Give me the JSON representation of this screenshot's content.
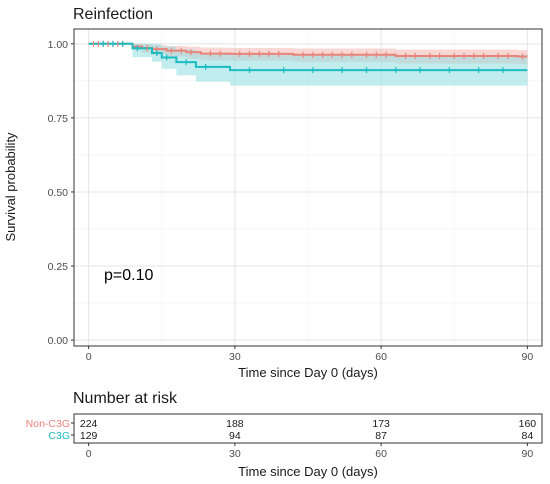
{
  "chart_data": [
    {
      "type": "line",
      "subtype": "kaplan-meier",
      "title": "Reinfection",
      "xlabel": "Time since Day 0 (days)",
      "ylabel": "Survival probability",
      "xlim": [
        -3,
        93
      ],
      "ylim": [
        -0.02,
        1.05
      ],
      "x_ticks": [
        0,
        30,
        60,
        90
      ],
      "y_ticks": [
        0.0,
        0.25,
        0.5,
        0.75,
        1.0
      ],
      "y_tick_labels": [
        "0.00",
        "0.25",
        "0.50",
        "0.75",
        "1.00"
      ],
      "grid": true,
      "annotation": "p=0.10",
      "series": [
        {
          "name": "Non-C3G",
          "color": "#e8837a",
          "band_color": "#f2b7b0",
          "steps": [
            [
              0,
              1.0
            ],
            [
              9,
              0.991
            ],
            [
              11,
              0.986
            ],
            [
              13,
              0.982
            ],
            [
              16,
              0.977
            ],
            [
              20,
              0.972
            ],
            [
              23,
              0.967
            ],
            [
              29,
              0.966
            ],
            [
              40,
              0.966
            ],
            [
              42,
              0.963
            ],
            [
              63,
              0.959
            ],
            [
              88,
              0.957
            ],
            [
              90,
              0.957
            ]
          ],
          "upper": [
            [
              0,
              1.0
            ],
            [
              9,
              1.0
            ],
            [
              11,
              0.998
            ],
            [
              13,
              0.995
            ],
            [
              16,
              0.992
            ],
            [
              20,
              0.99
            ],
            [
              23,
              0.987
            ],
            [
              29,
              0.986
            ],
            [
              42,
              0.984
            ],
            [
              63,
              0.981
            ],
            [
              88,
              0.979
            ],
            [
              90,
              0.979
            ]
          ],
          "lower": [
            [
              0,
              1.0
            ],
            [
              9,
              0.978
            ],
            [
              11,
              0.97
            ],
            [
              13,
              0.963
            ],
            [
              16,
              0.957
            ],
            [
              20,
              0.95
            ],
            [
              23,
              0.944
            ],
            [
              29,
              0.943
            ],
            [
              42,
              0.939
            ],
            [
              63,
              0.933
            ],
            [
              88,
              0.931
            ],
            [
              90,
              0.931
            ]
          ],
          "censor_x": [
            1,
            2,
            3,
            4,
            5,
            6,
            7,
            12,
            14,
            17,
            19,
            21,
            25,
            27,
            31,
            33,
            35,
            37,
            39,
            44,
            46,
            48,
            50,
            52,
            54,
            57,
            59,
            61,
            65,
            67,
            70,
            72,
            75,
            77,
            79,
            81,
            84,
            86,
            89
          ]
        },
        {
          "name": "C3G",
          "color": "#1cbdc1",
          "band_color": "#90dfe1",
          "steps": [
            [
              0,
              1.0
            ],
            [
              9,
              0.985
            ],
            [
              13,
              0.969
            ],
            [
              15,
              0.954
            ],
            [
              18,
              0.938
            ],
            [
              22,
              0.922
            ],
            [
              29,
              0.911
            ],
            [
              90,
              0.911
            ]
          ],
          "upper": [
            [
              0,
              1.0
            ],
            [
              9,
              1.0
            ],
            [
              13,
              1.0
            ],
            [
              15,
              0.99
            ],
            [
              18,
              0.98
            ],
            [
              22,
              0.969
            ],
            [
              29,
              0.962
            ],
            [
              90,
              0.962
            ]
          ],
          "lower": [
            [
              0,
              1.0
            ],
            [
              9,
              0.955
            ],
            [
              13,
              0.94
            ],
            [
              15,
              0.916
            ],
            [
              18,
              0.894
            ],
            [
              22,
              0.872
            ],
            [
              29,
              0.859
            ],
            [
              90,
              0.859
            ]
          ],
          "censor_x": [
            3,
            5,
            7,
            10,
            14,
            16,
            20,
            24,
            33,
            40,
            46,
            52,
            57,
            63,
            68,
            74,
            80,
            85
          ]
        }
      ]
    },
    {
      "type": "table",
      "title": "Number at risk",
      "xlabel": "Time since Day 0 (days)",
      "x_ticks": [
        0,
        30,
        60,
        90
      ],
      "rows": [
        {
          "name": "Non-C3G",
          "color": "#e8837a",
          "values": [
            224,
            188,
            173,
            160
          ]
        },
        {
          "name": "C3G",
          "color": "#1cbdc1",
          "values": [
            129,
            94,
            87,
            84
          ]
        }
      ]
    }
  ]
}
